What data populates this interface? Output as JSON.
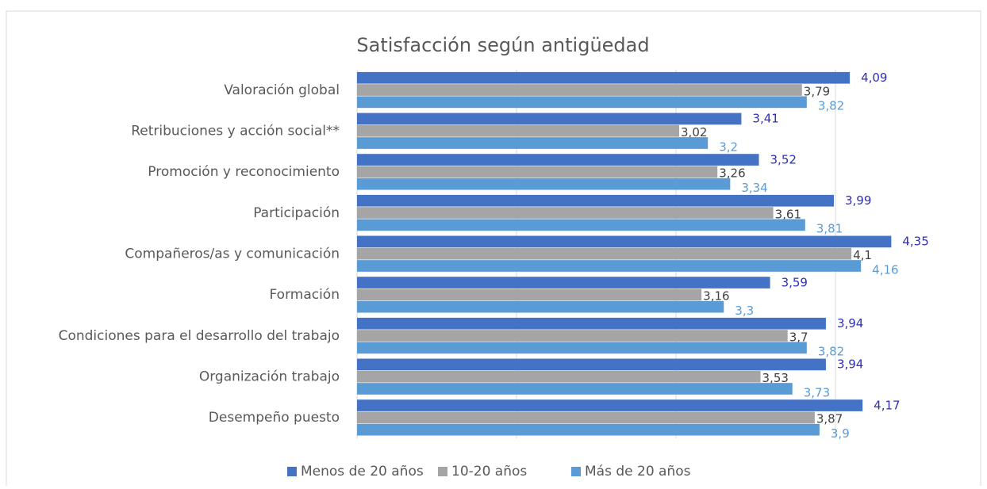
{
  "chart_data": {
    "type": "barh",
    "title": "Satisfacción según antigüedad",
    "categories": [
      "Valoración global",
      "Retribuciones y acción social**",
      "Promoción y reconocimiento",
      "Participación",
      "Compañeros/as y comunicación",
      "Formación",
      "Condiciones para el desarrollo del trabajo",
      "Organización trabajo",
      "Desempeño puesto"
    ],
    "series": [
      {
        "name": "Menos de 20 años",
        "color": "#4472c4",
        "label_color": "#2e2eb8",
        "values": [
          4.09,
          3.41,
          3.52,
          3.99,
          4.35,
          3.59,
          3.94,
          3.94,
          4.17
        ],
        "value_labels": [
          "4,09",
          "3,41",
          "3,52",
          "3,99",
          "4,35",
          "3,59",
          "3,94",
          "3,94",
          "4,17"
        ]
      },
      {
        "name": "10-20 años",
        "color": "#a5a5a5",
        "label_color": "#404040",
        "values": [
          3.79,
          3.02,
          3.26,
          3.61,
          4.1,
          3.16,
          3.7,
          3.53,
          3.87
        ],
        "value_labels": [
          "3,79",
          "3,02",
          "3,26",
          "3,61",
          "4,1",
          "3,16",
          "3,7",
          "3,53",
          "3,87"
        ]
      },
      {
        "name": "Más de 20 años",
        "color": "#5b9bd5",
        "label_color": "#5b9bd5",
        "values": [
          3.82,
          3.2,
          3.34,
          3.81,
          4.16,
          3.3,
          3.82,
          3.73,
          3.9
        ],
        "value_labels": [
          "3,82",
          "3,2",
          "3,34",
          "3,81",
          "4,16",
          "3,3",
          "3,82",
          "3,73",
          "3,9"
        ]
      }
    ],
    "xlim": [
      1,
      4.5
    ],
    "xticks": [
      1,
      2,
      3,
      4
    ],
    "grid": true,
    "legend": "bottom"
  }
}
